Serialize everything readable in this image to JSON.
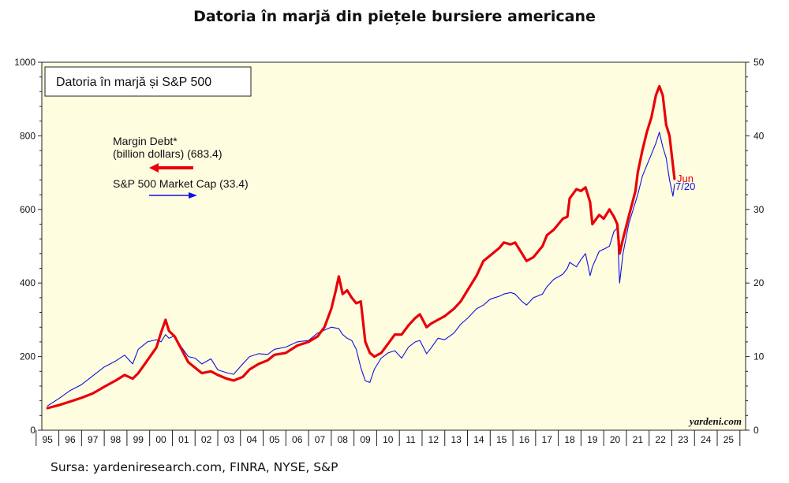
{
  "page": {
    "title": "Datoria în marjă din piețele bursiere americane",
    "source": "Sursa: yardeniresearch.com, FINRA, NYSE, S&P"
  },
  "chart_data": {
    "type": "line",
    "title": "Datoria în marjă și S&P 500",
    "watermark": "yardeni.com",
    "x_axis": {
      "range": [
        1994.75,
        2025.75
      ],
      "tick_labels": [
        "95",
        "96",
        "97",
        "98",
        "99",
        "00",
        "01",
        "02",
        "03",
        "04",
        "05",
        "06",
        "07",
        "08",
        "09",
        "10",
        "11",
        "12",
        "13",
        "14",
        "15",
        "16",
        "17",
        "18",
        "19",
        "20",
        "21",
        "22",
        "23",
        "24",
        "25"
      ],
      "tick_years": [
        1995,
        1996,
        1997,
        1998,
        1999,
        2000,
        2001,
        2002,
        2003,
        2004,
        2005,
        2006,
        2007,
        2008,
        2009,
        2010,
        2011,
        2012,
        2013,
        2014,
        2015,
        2016,
        2017,
        2018,
        2019,
        2020,
        2021,
        2022,
        2023,
        2024,
        2025
      ]
    },
    "y_left": {
      "range": [
        0,
        1000
      ],
      "ticks": [
        "0",
        "200",
        "400",
        "600",
        "800",
        "1000"
      ]
    },
    "y_right": {
      "range": [
        0,
        50
      ],
      "ticks": [
        "0",
        "10",
        "20",
        "30",
        "40",
        "50"
      ]
    },
    "background_color": "#fffde0",
    "series": [
      {
        "name": "Margin Debt* (billion dollars)",
        "legend_line1": "Margin Debt*",
        "legend_line2": "(billion dollars) (683.4)",
        "axis": "left",
        "color": "#e8000a",
        "end_label": "Jun",
        "points": [
          [
            1995.0,
            60
          ],
          [
            1995.5,
            68
          ],
          [
            1996.0,
            78
          ],
          [
            1996.5,
            88
          ],
          [
            1997.0,
            100
          ],
          [
            1997.5,
            118
          ],
          [
            1998.0,
            135
          ],
          [
            1998.4,
            150
          ],
          [
            1998.75,
            140
          ],
          [
            1999.0,
            155
          ],
          [
            1999.4,
            190
          ],
          [
            1999.8,
            225
          ],
          [
            2000.0,
            265
          ],
          [
            2000.2,
            300
          ],
          [
            2000.35,
            270
          ],
          [
            2000.6,
            255
          ],
          [
            2000.9,
            220
          ],
          [
            2001.2,
            185
          ],
          [
            2001.5,
            170
          ],
          [
            2001.8,
            155
          ],
          [
            2002.2,
            160
          ],
          [
            2002.5,
            150
          ],
          [
            2002.9,
            140
          ],
          [
            2003.2,
            135
          ],
          [
            2003.6,
            145
          ],
          [
            2003.9,
            165
          ],
          [
            2004.3,
            180
          ],
          [
            2004.7,
            190
          ],
          [
            2005.0,
            205
          ],
          [
            2005.5,
            210
          ],
          [
            2006.0,
            230
          ],
          [
            2006.5,
            240
          ],
          [
            2006.9,
            255
          ],
          [
            2007.2,
            280
          ],
          [
            2007.5,
            330
          ],
          [
            2007.7,
            380
          ],
          [
            2007.83,
            418
          ],
          [
            2008.0,
            370
          ],
          [
            2008.2,
            380
          ],
          [
            2008.4,
            360
          ],
          [
            2008.6,
            345
          ],
          [
            2008.8,
            350
          ],
          [
            2009.0,
            240
          ],
          [
            2009.2,
            210
          ],
          [
            2009.4,
            200
          ],
          [
            2009.7,
            210
          ],
          [
            2010.0,
            235
          ],
          [
            2010.3,
            260
          ],
          [
            2010.6,
            260
          ],
          [
            2010.9,
            285
          ],
          [
            2011.2,
            305
          ],
          [
            2011.4,
            315
          ],
          [
            2011.7,
            280
          ],
          [
            2011.9,
            290
          ],
          [
            2012.2,
            300
          ],
          [
            2012.5,
            310
          ],
          [
            2012.9,
            330
          ],
          [
            2013.2,
            350
          ],
          [
            2013.5,
            380
          ],
          [
            2013.9,
            420
          ],
          [
            2014.2,
            460
          ],
          [
            2014.5,
            475
          ],
          [
            2014.9,
            495
          ],
          [
            2015.1,
            510
          ],
          [
            2015.4,
            505
          ],
          [
            2015.6,
            510
          ],
          [
            2015.9,
            480
          ],
          [
            2016.1,
            460
          ],
          [
            2016.4,
            470
          ],
          [
            2016.8,
            500
          ],
          [
            2017.0,
            530
          ],
          [
            2017.3,
            545
          ],
          [
            2017.7,
            575
          ],
          [
            2017.9,
            580
          ],
          [
            2018.0,
            630
          ],
          [
            2018.3,
            655
          ],
          [
            2018.5,
            650
          ],
          [
            2018.7,
            660
          ],
          [
            2018.9,
            620
          ],
          [
            2019.0,
            560
          ],
          [
            2019.3,
            585
          ],
          [
            2019.5,
            575
          ],
          [
            2019.75,
            600
          ],
          [
            2019.95,
            580
          ],
          [
            2020.1,
            560
          ],
          [
            2020.2,
            480
          ],
          [
            2020.35,
            520
          ],
          [
            2020.6,
            580
          ],
          [
            2020.9,
            650
          ],
          [
            2021.0,
            700
          ],
          [
            2021.2,
            760
          ],
          [
            2021.4,
            810
          ],
          [
            2021.6,
            850
          ],
          [
            2021.8,
            910
          ],
          [
            2021.95,
            935
          ],
          [
            2022.1,
            910
          ],
          [
            2022.25,
            830
          ],
          [
            2022.4,
            800
          ],
          [
            2022.55,
            720
          ],
          [
            2022.62,
            683.4
          ]
        ]
      },
      {
        "name": "S&P 500 Market Cap",
        "legend_label": "S&P 500 Market Cap (33.4)",
        "axis": "right",
        "color": "#1010e0",
        "end_label": "7/20",
        "points": [
          [
            1995.0,
            3.3
          ],
          [
            1995.5,
            4.3
          ],
          [
            1996.0,
            5.4
          ],
          [
            1996.5,
            6.2
          ],
          [
            1997.0,
            7.4
          ],
          [
            1997.5,
            8.6
          ],
          [
            1998.0,
            9.4
          ],
          [
            1998.4,
            10.2
          ],
          [
            1998.75,
            9.0
          ],
          [
            1999.0,
            11.0
          ],
          [
            1999.4,
            12.0
          ],
          [
            1999.8,
            12.3
          ],
          [
            2000.0,
            12.0
          ],
          [
            2000.2,
            13.0
          ],
          [
            2000.35,
            12.5
          ],
          [
            2000.6,
            12.8
          ],
          [
            2000.9,
            11.3
          ],
          [
            2001.2,
            10.0
          ],
          [
            2001.5,
            9.8
          ],
          [
            2001.8,
            9.0
          ],
          [
            2002.2,
            9.7
          ],
          [
            2002.5,
            8.2
          ],
          [
            2002.9,
            7.8
          ],
          [
            2003.2,
            7.6
          ],
          [
            2003.6,
            9.0
          ],
          [
            2003.9,
            10.0
          ],
          [
            2004.3,
            10.4
          ],
          [
            2004.7,
            10.3
          ],
          [
            2005.0,
            11.0
          ],
          [
            2005.5,
            11.3
          ],
          [
            2006.0,
            12.0
          ],
          [
            2006.5,
            12.2
          ],
          [
            2006.9,
            13.2
          ],
          [
            2007.2,
            13.6
          ],
          [
            2007.5,
            14.0
          ],
          [
            2007.83,
            13.8
          ],
          [
            2008.0,
            13.0
          ],
          [
            2008.2,
            12.5
          ],
          [
            2008.4,
            12.2
          ],
          [
            2008.6,
            11.0
          ],
          [
            2008.8,
            8.5
          ],
          [
            2009.0,
            6.7
          ],
          [
            2009.2,
            6.5
          ],
          [
            2009.4,
            8.3
          ],
          [
            2009.7,
            9.8
          ],
          [
            2010.0,
            10.5
          ],
          [
            2010.3,
            10.8
          ],
          [
            2010.6,
            9.8
          ],
          [
            2010.9,
            11.3
          ],
          [
            2011.2,
            12.0
          ],
          [
            2011.4,
            12.2
          ],
          [
            2011.7,
            10.4
          ],
          [
            2011.9,
            11.2
          ],
          [
            2012.2,
            12.5
          ],
          [
            2012.5,
            12.3
          ],
          [
            2012.9,
            13.2
          ],
          [
            2013.2,
            14.4
          ],
          [
            2013.5,
            15.2
          ],
          [
            2013.9,
            16.5
          ],
          [
            2014.2,
            17.0
          ],
          [
            2014.5,
            17.8
          ],
          [
            2014.9,
            18.2
          ],
          [
            2015.1,
            18.5
          ],
          [
            2015.4,
            18.7
          ],
          [
            2015.6,
            18.5
          ],
          [
            2015.9,
            17.5
          ],
          [
            2016.1,
            17.0
          ],
          [
            2016.4,
            18.0
          ],
          [
            2016.8,
            18.5
          ],
          [
            2017.0,
            19.5
          ],
          [
            2017.3,
            20.5
          ],
          [
            2017.7,
            21.2
          ],
          [
            2017.9,
            22.0
          ],
          [
            2018.0,
            22.8
          ],
          [
            2018.3,
            22.2
          ],
          [
            2018.5,
            23.2
          ],
          [
            2018.7,
            24.0
          ],
          [
            2018.9,
            21.0
          ],
          [
            2019.0,
            22.2
          ],
          [
            2019.3,
            24.3
          ],
          [
            2019.5,
            24.6
          ],
          [
            2019.75,
            25.0
          ],
          [
            2019.95,
            27.0
          ],
          [
            2020.1,
            27.5
          ],
          [
            2020.2,
            20.0
          ],
          [
            2020.35,
            24.0
          ],
          [
            2020.6,
            28.0
          ],
          [
            2020.9,
            31.0
          ],
          [
            2021.0,
            32.0
          ],
          [
            2021.2,
            34.5
          ],
          [
            2021.4,
            36.0
          ],
          [
            2021.6,
            37.5
          ],
          [
            2021.8,
            39.0
          ],
          [
            2021.95,
            40.5
          ],
          [
            2022.1,
            38.5
          ],
          [
            2022.25,
            37.0
          ],
          [
            2022.4,
            34.0
          ],
          [
            2022.55,
            31.8
          ],
          [
            2022.62,
            33.4
          ]
        ]
      }
    ]
  }
}
